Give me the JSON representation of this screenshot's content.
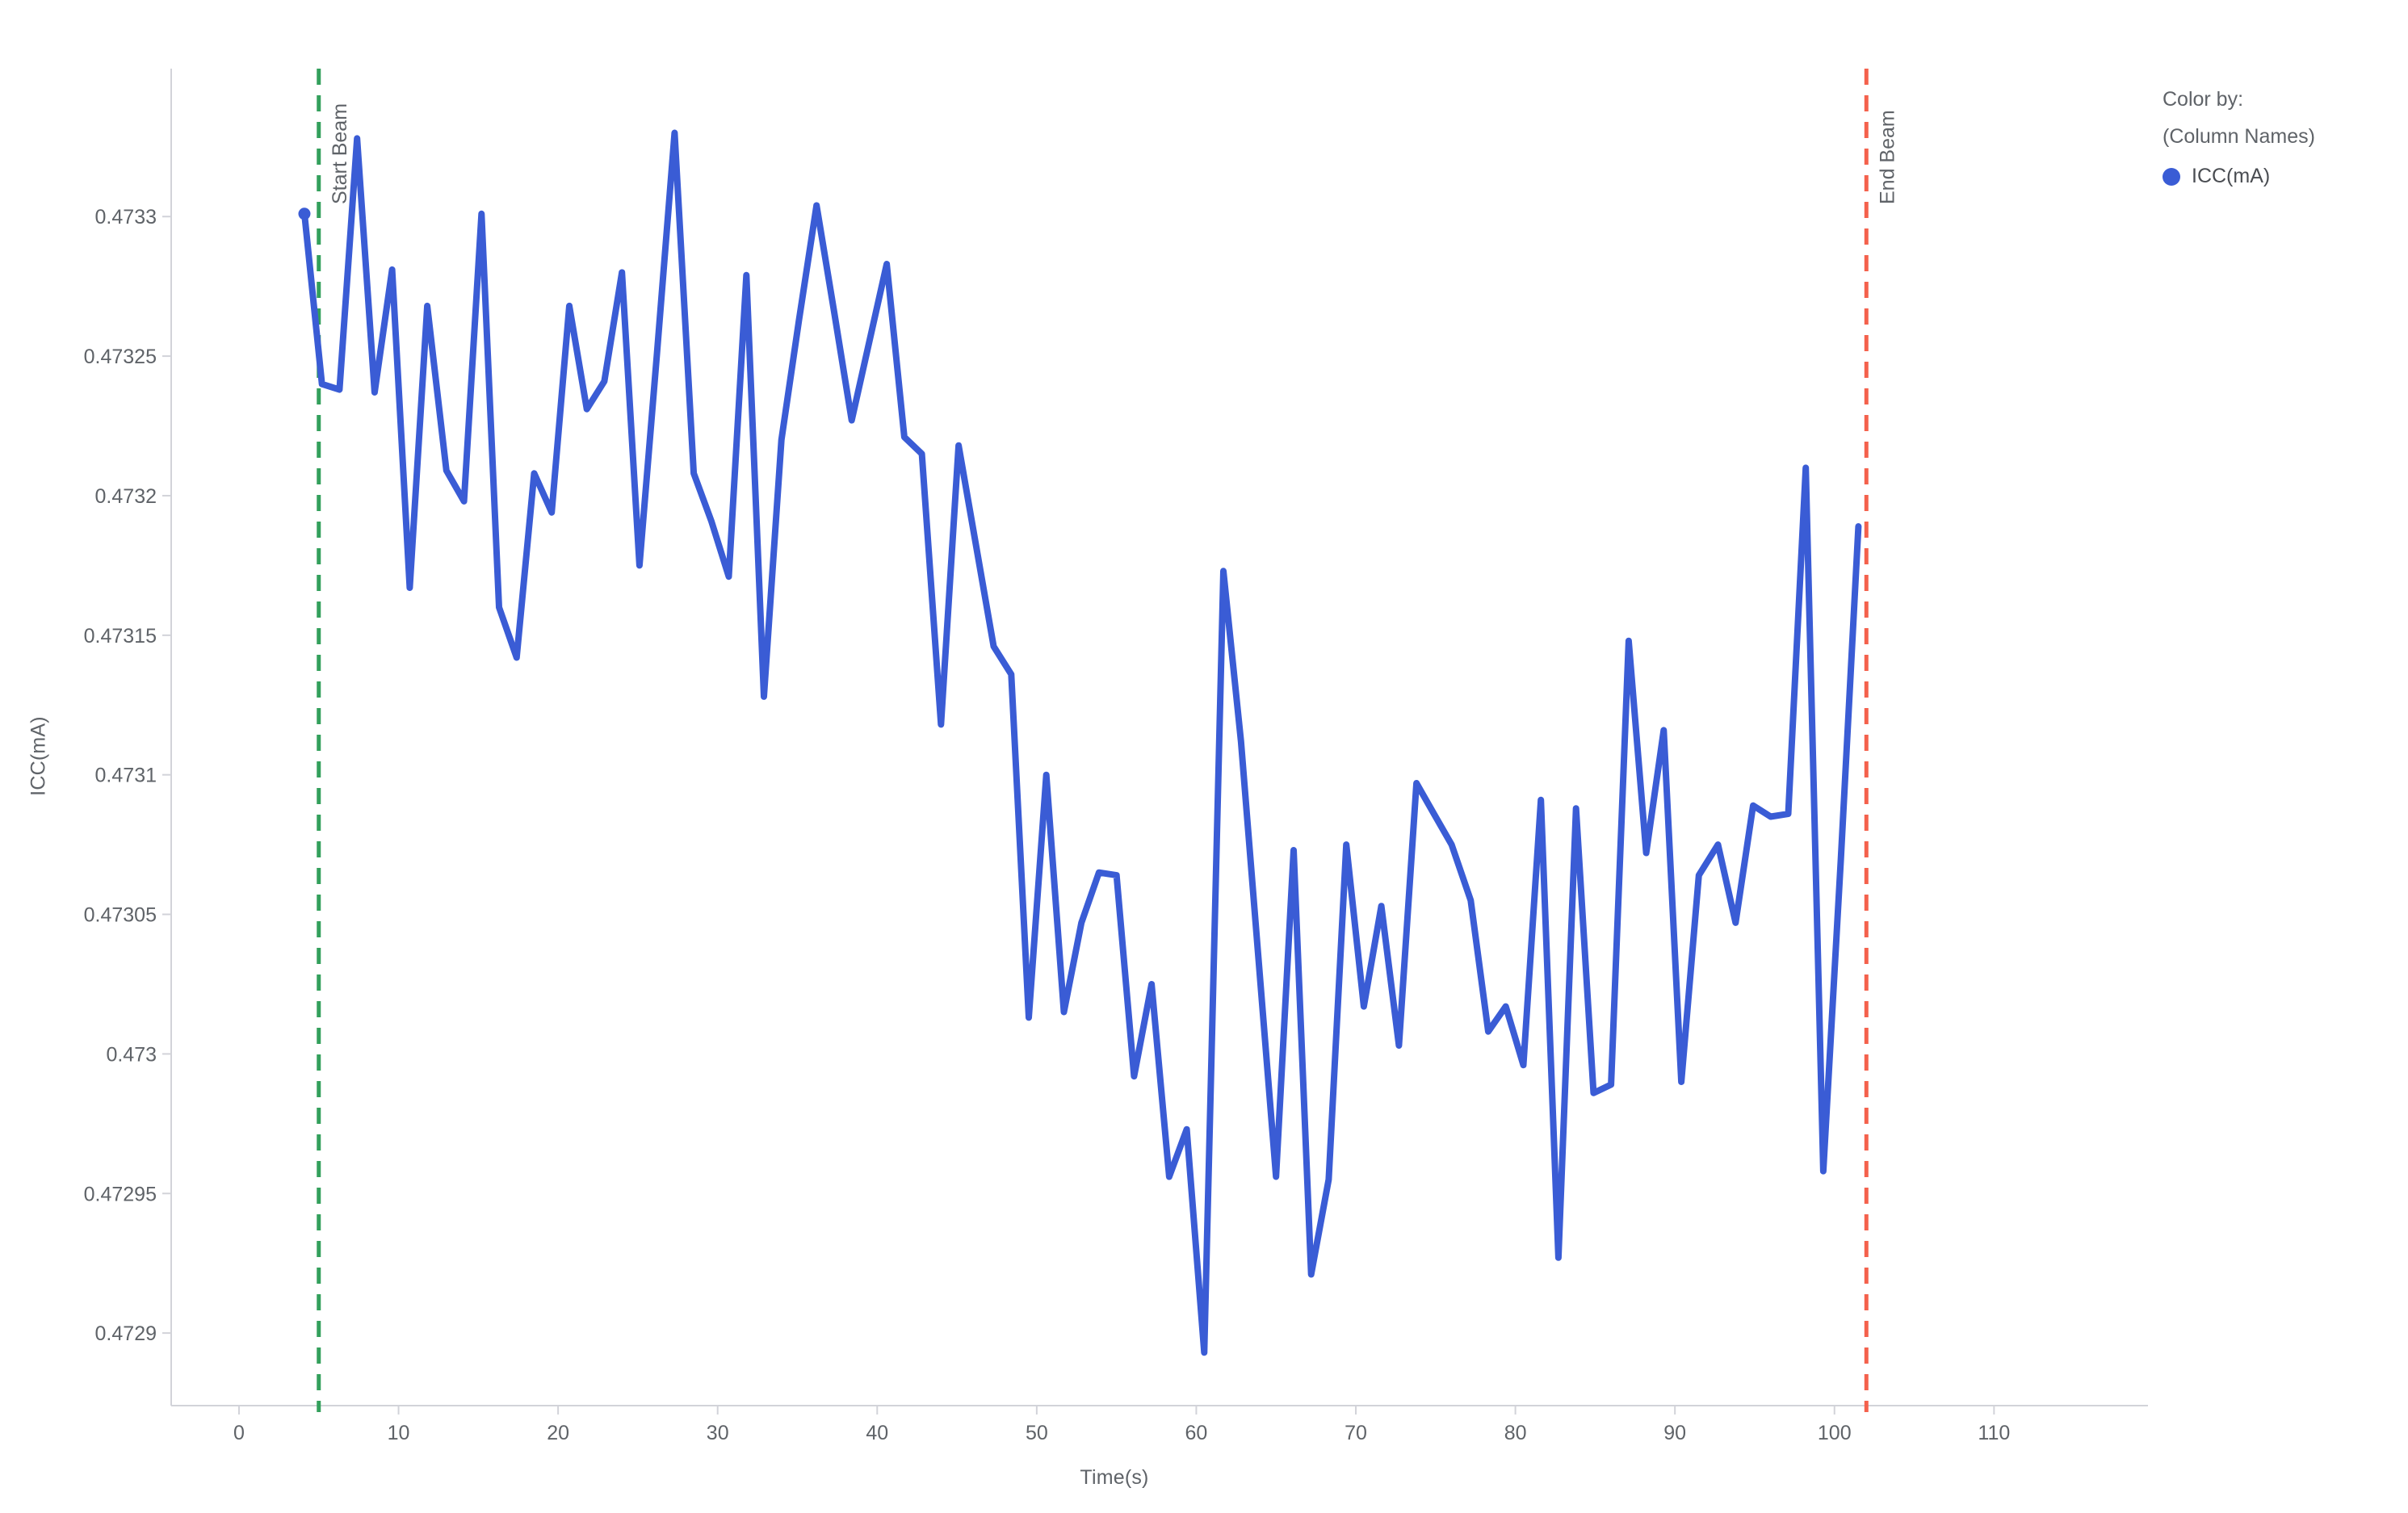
{
  "chart_data": {
    "type": "line",
    "title": "",
    "xlabel": "Time(s)",
    "ylabel": "ICC(mA)",
    "xlim": [
      -4.25,
      119.65
    ],
    "ylim": [
      0.472874,
      0.473353
    ],
    "grid": false,
    "legend_position": "top-right",
    "axis_color": "#D2D3D9",
    "tick_text_color": "#5F6368",
    "x_tick_values": [
      0,
      10,
      20,
      30,
      40,
      50,
      60,
      70,
      80,
      90,
      100,
      110
    ],
    "x_tick_labels": [
      "0",
      "10",
      "20",
      "30",
      "40",
      "50",
      "60",
      "70",
      "80",
      "90",
      "100",
      "110"
    ],
    "y_tick_values": [
      0.4733,
      0.47325,
      0.4732,
      0.47315,
      0.4731,
      0.47305,
      0.473,
      0.47295,
      0.4729
    ],
    "y_tick_labels": [
      "0.4733",
      "0.47325",
      "0.4732",
      "0.47315",
      "0.4731",
      "0.47305",
      "0.473",
      "0.47295",
      "0.4729"
    ],
    "series": [
      {
        "name": "ICC(mA)",
        "color": "#3A5CD5",
        "line_width": 8,
        "marker_first_point": true,
        "x": [
          4.1,
          5.2,
          6.3,
          7.4,
          8.5,
          9.6,
          10.7,
          11.8,
          13.0,
          14.1,
          15.2,
          16.3,
          17.4,
          18.5,
          19.6,
          20.7,
          21.8,
          22.9,
          24.0,
          25.1,
          26.2,
          27.3,
          28.5,
          29.6,
          30.7,
          31.8,
          32.9,
          34.0,
          35.1,
          36.2,
          37.3,
          38.4,
          39.5,
          40.6,
          41.7,
          42.8,
          44.0,
          45.1,
          46.2,
          47.3,
          48.4,
          49.5,
          50.6,
          51.7,
          52.8,
          53.9,
          55.0,
          56.1,
          57.2,
          58.3,
          59.4,
          60.5,
          61.7,
          62.8,
          63.9,
          65.0,
          66.1,
          67.2,
          68.3,
          69.4,
          70.5,
          71.6,
          72.7,
          73.8,
          74.9,
          76.0,
          77.2,
          78.3,
          79.4,
          80.5,
          81.6,
          82.7,
          83.8,
          84.9,
          86.0,
          87.1,
          88.2,
          89.3,
          90.4,
          91.5,
          92.7,
          93.8,
          94.9,
          96.0,
          97.1,
          98.2,
          99.3,
          100.4,
          101.5
        ],
        "y": [
          0.473301,
          0.47324,
          0.473238,
          0.473328,
          0.473237,
          0.473281,
          0.473167,
          0.473268,
          0.473209,
          0.473198,
          0.473301,
          0.47316,
          0.473142,
          0.473208,
          0.473194,
          0.473268,
          0.473231,
          0.473241,
          0.47328,
          0.473175,
          0.473251,
          0.47333,
          0.473208,
          0.473191,
          0.473171,
          0.473279,
          0.473128,
          0.47322,
          0.473263,
          0.473304,
          0.473266,
          0.473227,
          0.473255,
          0.473283,
          0.473221,
          0.473215,
          0.473118,
          0.473218,
          0.473182,
          0.473146,
          0.473136,
          0.473013,
          0.4731,
          0.473015,
          0.473047,
          0.473065,
          0.473064,
          0.472992,
          0.473025,
          0.472956,
          0.472973,
          0.472893,
          0.473173,
          0.473112,
          0.473034,
          0.472956,
          0.473073,
          0.472921,
          0.472955,
          0.473075,
          0.473017,
          0.473053,
          0.473003,
          0.473097,
          0.473086,
          0.473075,
          0.473055,
          0.473008,
          0.473017,
          0.472996,
          0.473091,
          0.472927,
          0.473088,
          0.472986,
          0.472989,
          0.473148,
          0.473072,
          0.473116,
          0.47299,
          0.473064,
          0.473075,
          0.473047,
          0.473089,
          0.473085,
          0.473086,
          0.47321,
          0.472958,
          0.47307,
          0.473189
        ]
      }
    ],
    "annotations": [
      {
        "type": "vline",
        "label": "Start Beam",
        "x": 5,
        "color": "#33A05C"
      },
      {
        "type": "vline",
        "label": "End Beam",
        "x": 102,
        "color": "#F4614C"
      }
    ]
  },
  "legend": {
    "title_line1": "Color by:",
    "title_line2": "(Column Names)",
    "items": [
      {
        "label": "ICC(mA)",
        "color": "#3A5CD5"
      }
    ]
  }
}
